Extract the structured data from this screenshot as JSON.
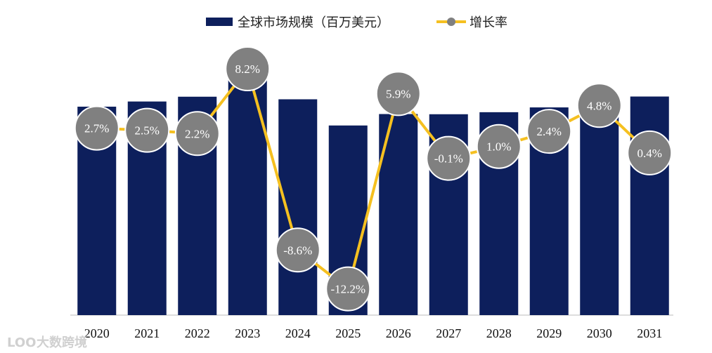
{
  "chart_data": {
    "type": "bar",
    "categories": [
      "2020",
      "2021",
      "2022",
      "2023",
      "2024",
      "2025",
      "2026",
      "2027",
      "2028",
      "2029",
      "2030",
      "2031"
    ],
    "series": [
      {
        "name": "全球市场规模（百万美元）",
        "kind": "bar",
        "values": [
          5650,
          5790,
          5920,
          6400,
          5850,
          5140,
          5450,
          5445,
          5500,
          5630,
          5900,
          5925
        ]
      },
      {
        "name": "增长率",
        "kind": "line",
        "values": [
          2.7,
          2.5,
          2.2,
          8.2,
          -8.6,
          -12.2,
          5.9,
          -0.1,
          1.0,
          2.4,
          4.8,
          0.4
        ],
        "labels": [
          "2.7%",
          "2.5%",
          "2.2%",
          "8.2%",
          "-8.6%",
          "-12.2%",
          "5.9%",
          "-0.1%",
          "1.0%",
          "2.4%",
          "4.8%",
          "0.4%"
        ]
      }
    ],
    "title": "",
    "xlabel": "",
    "ylabel": "",
    "ylim_bar": [
      0,
      7400
    ],
    "ylim_rate": [
      -16,
      11
    ],
    "legend_position": "top-center",
    "colors": {
      "bar": "#0d1f5c",
      "line": "#f5c020",
      "bubble_fill": "#808080",
      "bubble_stroke": "#ffffff",
      "axis": "#bbbbbb"
    }
  },
  "watermark": {
    "text": "大数跨境",
    "logo_text": "LOO"
  }
}
